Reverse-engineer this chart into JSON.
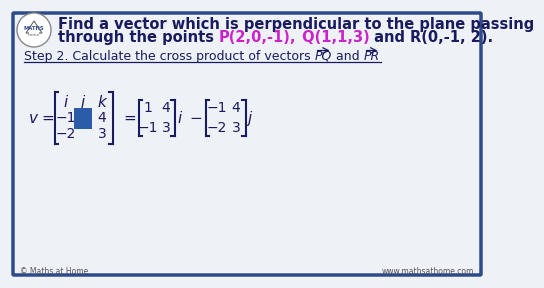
{
  "bg_color": "#eef2f7",
  "border_color": "#2e4a8a",
  "title_line1": "Find a vector which is perpendicular to the plane passing",
  "title_line2_plain": "through the points ",
  "P_text": "P(2,0,-1),",
  "Q_text": " Q(1,1,3)",
  "and_text": " and ",
  "R_text": "R(0,-1, 2).",
  "P_color": "#cc22cc",
  "Q_color": "#cc22cc",
  "R_color": "#1a1a5e",
  "step_text": "Step 2. Calculate the cross product of vectors ",
  "footer_left": "© Maths at Home",
  "footer_right": "www.mathsathome.com",
  "highlight_color": "#2a5ca8",
  "text_color": "#1a1a5e",
  "title_fontsize": 10.5,
  "step_fontsize": 9.0,
  "math_fontsize": 11.0
}
